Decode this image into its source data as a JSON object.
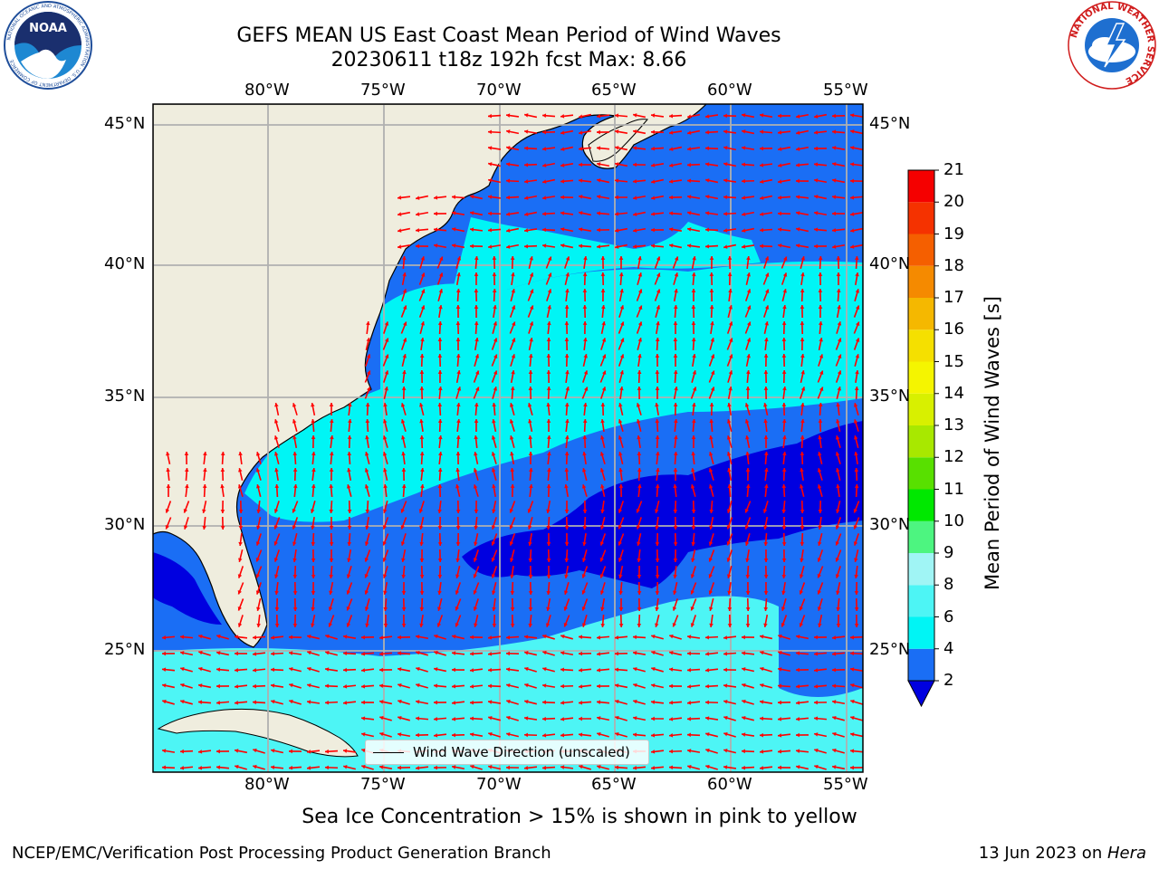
{
  "header": {
    "title": "GEFS MEAN US East Coast Mean Period of Wind Waves",
    "subtitle": "20230611 t18z 192h fcst   Max: 8.66"
  },
  "logos": {
    "noaa": {
      "text": "NOAA",
      "ring_text": "NATIONAL OCEANIC AND ATMOSPHERIC ADMINISTRATION · U.S. DEPARTMENT OF COMMERCE"
    },
    "nws": {
      "ring_text": "NATIONAL WEATHER SERVICE"
    }
  },
  "map": {
    "lon_labels": [
      "80°W",
      "75°W",
      "70°W",
      "65°W",
      "60°W",
      "55°W"
    ],
    "lat_labels": [
      "45°N",
      "40°N",
      "35°N",
      "30°N",
      "25°N"
    ],
    "legend_label": "Wind Wave Direction (unscaled)",
    "colors": {
      "land": "#efedde",
      "grid": "#b0b0b0",
      "arrow": "#ff0000"
    }
  },
  "colorbar": {
    "label": "Mean Period of Wind Waves [s]",
    "ticks": [
      "2",
      "4",
      "6",
      "8",
      "9",
      "10",
      "11",
      "12",
      "13",
      "14",
      "15",
      "16",
      "17",
      "18",
      "19",
      "20",
      "21"
    ],
    "colors": [
      "#1a6ef5",
      "#00f5f5",
      "#4df5f5",
      "#a0f5f5",
      "#4df580",
      "#00e800",
      "#58e000",
      "#a8e800",
      "#d8f000",
      "#f5f500",
      "#f5e000",
      "#f5b800",
      "#f58a00",
      "#f55f00",
      "#f53200",
      "#f50000"
    ],
    "under_color": "#0000e0"
  },
  "chart_data": {
    "type": "heatmap",
    "title": "GEFS MEAN US East Coast Mean Period of Wind Waves",
    "subtitle": "20230611 t18z 192h fcst   Max: 8.66",
    "variable": "Mean Period of Wind Waves [s]",
    "max": 8.66,
    "lon_range": [
      -85,
      -54.5
    ],
    "lat_range": [
      20.5,
      45.8
    ],
    "colorbar_range": [
      2,
      21
    ]
  },
  "caption": "Sea Ice Concentration > 15% is shown in pink to yellow",
  "footer": {
    "left": "NCEP/EMC/Verification Post Processing Product Generation Branch",
    "right_prefix": "13 Jun 2023 on ",
    "right_machine": "Hera"
  }
}
